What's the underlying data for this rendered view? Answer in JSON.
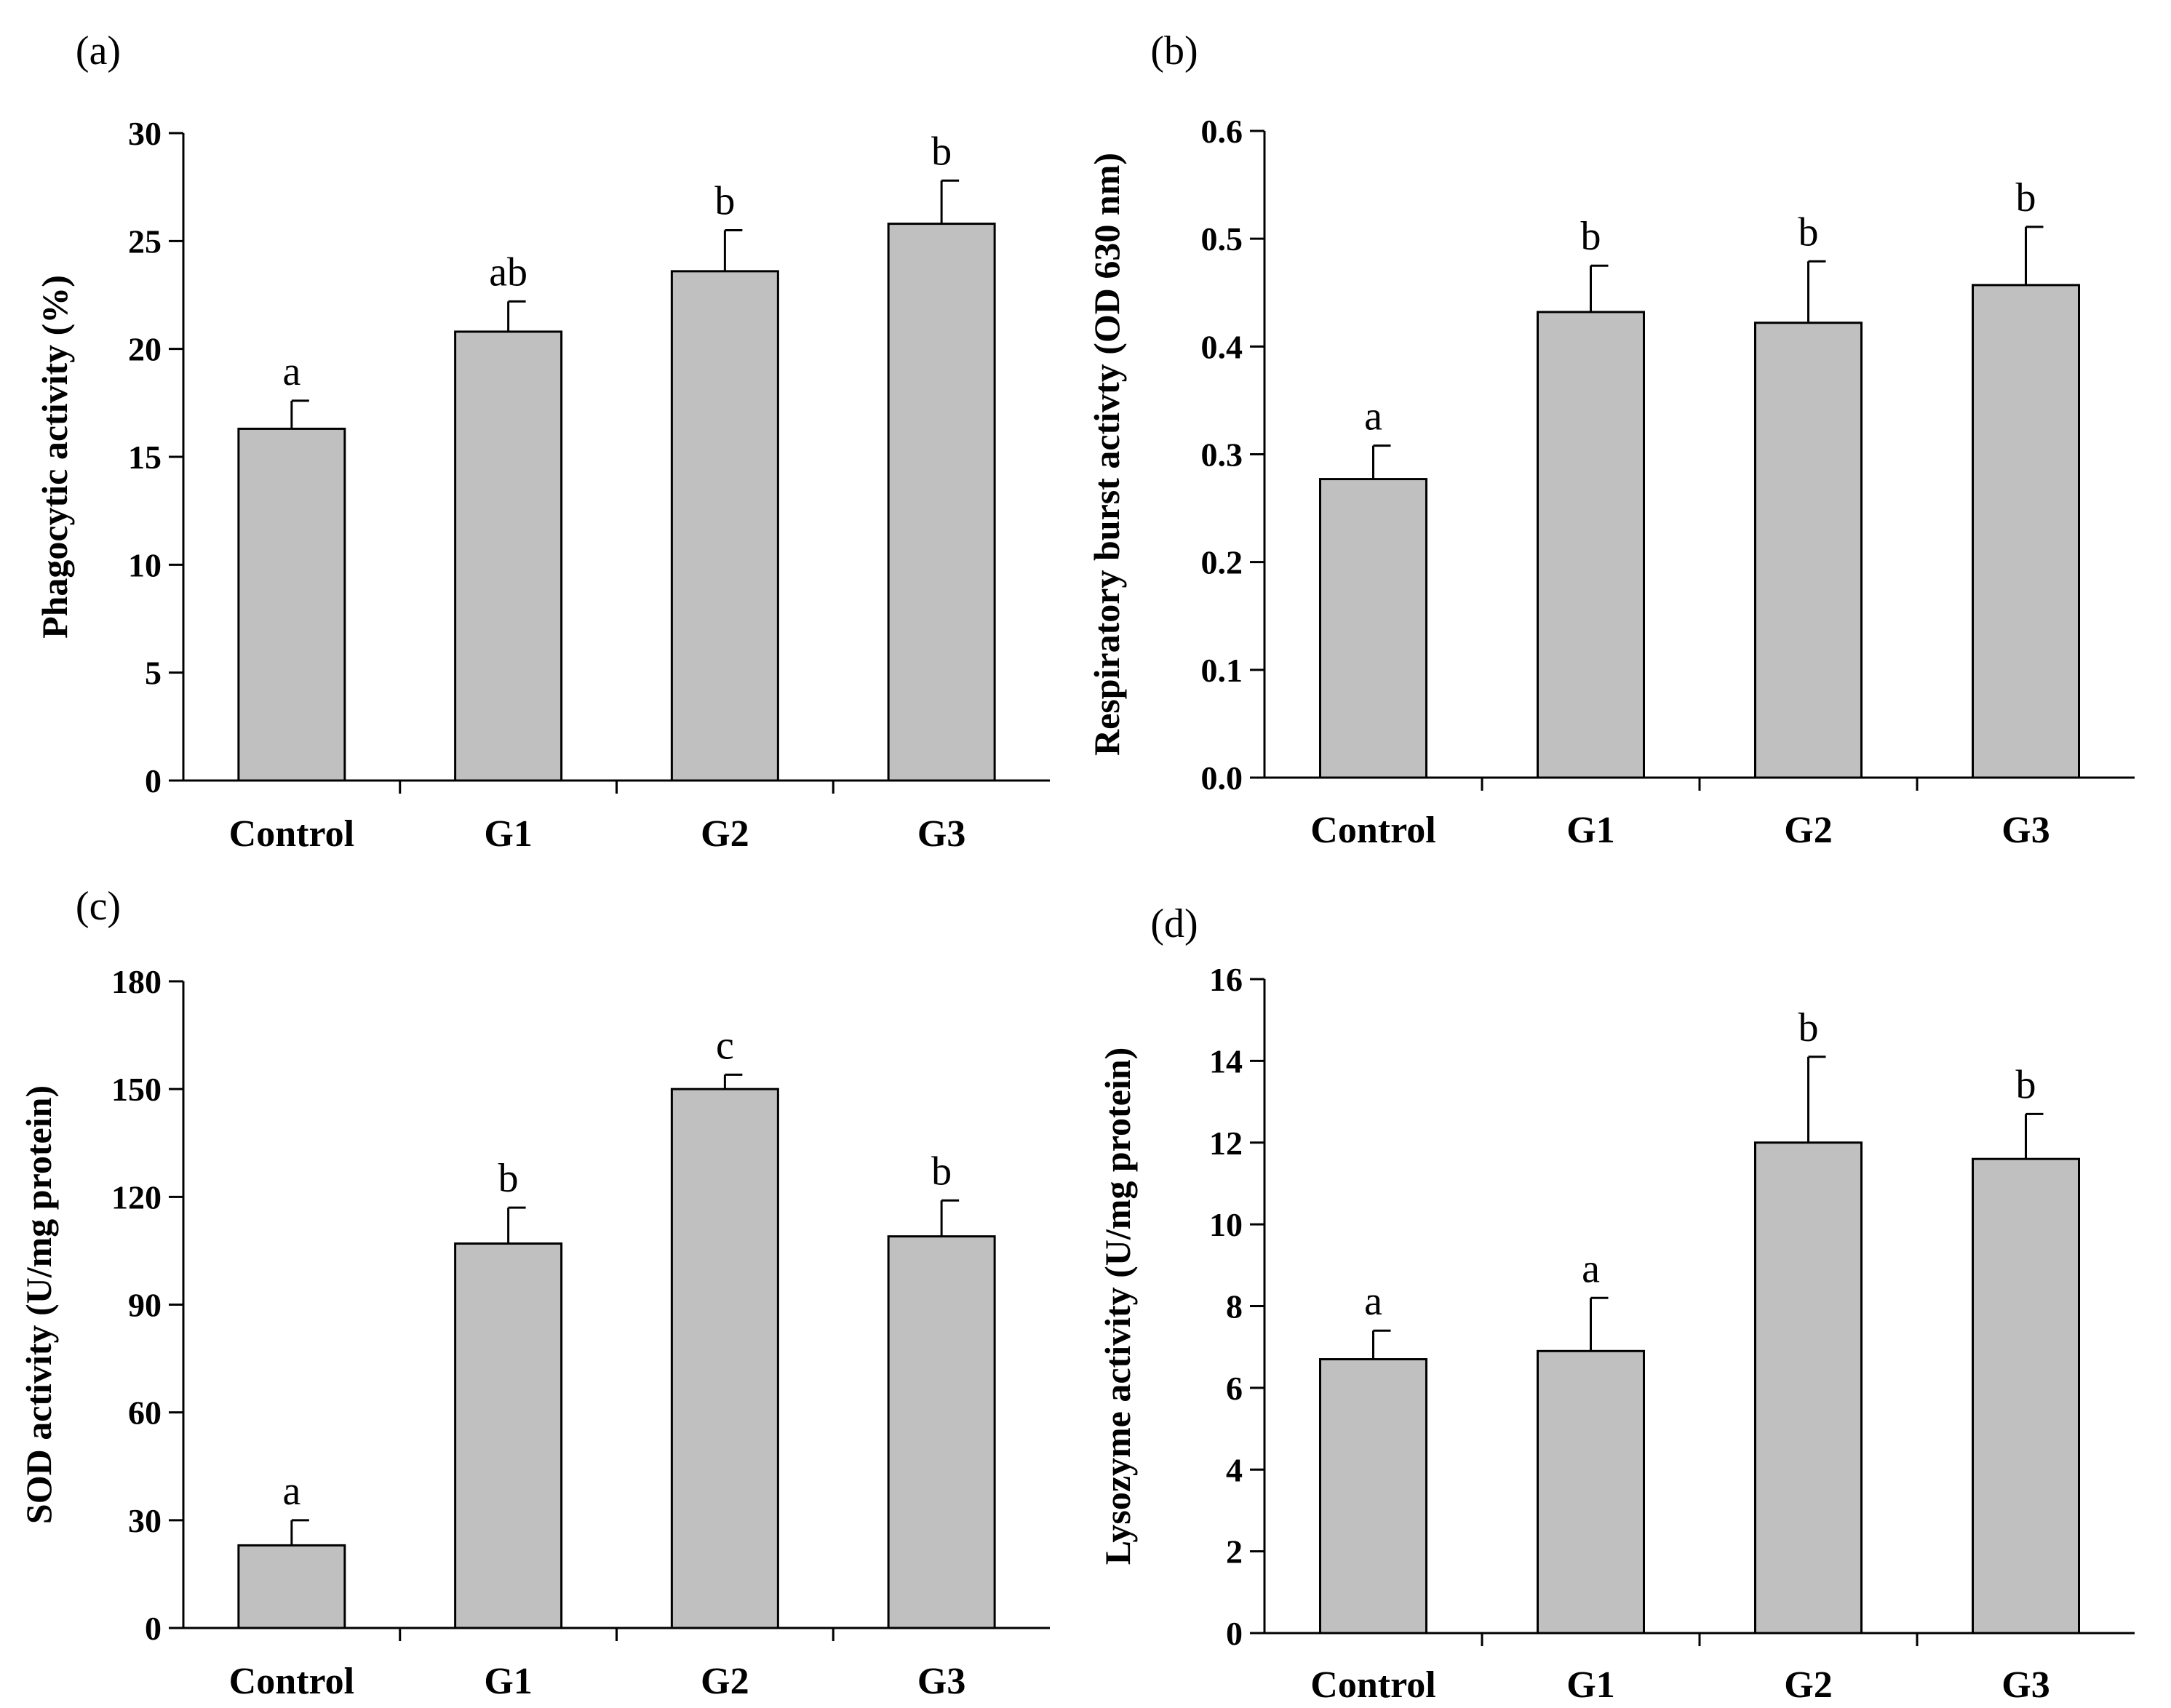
{
  "colors": {
    "bar_fill": "#c0c0c0",
    "bar_stroke": "#000000",
    "axis": "#000000"
  },
  "chart_data": [
    {
      "type": "bar",
      "panel": "(a)",
      "categories": [
        "Control",
        "G1",
        "G2",
        "G3"
      ],
      "values": [
        16.3,
        20.8,
        23.6,
        25.8
      ],
      "errors": [
        1.3,
        1.4,
        1.9,
        2.0
      ],
      "significance": [
        "a",
        "ab",
        "b",
        "b"
      ],
      "title": "",
      "xlabel": "",
      "ylabel": "Phagocytic activity (%)",
      "ylim": [
        0,
        30
      ],
      "yticks": [
        "0",
        "5",
        "10",
        "15",
        "20",
        "25",
        "30"
      ]
    },
    {
      "type": "bar",
      "panel": "(b)",
      "categories": [
        "Control",
        "G1",
        "G2",
        "G3"
      ],
      "values": [
        0.277,
        0.432,
        0.422,
        0.457
      ],
      "errors": [
        0.031,
        0.043,
        0.057,
        0.054
      ],
      "significance": [
        "a",
        "b",
        "b",
        "b"
      ],
      "title": "",
      "xlabel": "",
      "ylabel": "Respiratory burst activty (OD 630 nm)",
      "ylim": [
        0,
        0.6
      ],
      "yticks": [
        "0.0",
        "0.1",
        "0.2",
        "0.3",
        "0.4",
        "0.5",
        "0.6"
      ]
    },
    {
      "type": "bar",
      "panel": "(c)",
      "categories": [
        "Control",
        "G1",
        "G2",
        "G3"
      ],
      "values": [
        23,
        107,
        150,
        109
      ],
      "errors": [
        7,
        10,
        4,
        10
      ],
      "significance": [
        "a",
        "b",
        "c",
        "b"
      ],
      "title": "",
      "xlabel": "",
      "ylabel": "SOD activity (U/mg protein)",
      "ylim": [
        0,
        180
      ],
      "yticks": [
        "0",
        "30",
        "60",
        "90",
        "120",
        "150",
        "180"
      ]
    },
    {
      "type": "bar",
      "panel": "(d)",
      "categories": [
        "Control",
        "G1",
        "G2",
        "G3"
      ],
      "values": [
        6.7,
        6.9,
        12.0,
        11.6
      ],
      "errors": [
        0.7,
        1.3,
        2.1,
        1.1
      ],
      "significance": [
        "a",
        "a",
        "b",
        "b"
      ],
      "title": "",
      "xlabel": "",
      "ylabel": "Lysozyme activity (U/mg protein)",
      "ylim": [
        0,
        16
      ],
      "yticks": [
        "0",
        "2",
        "4",
        "6",
        "8",
        "10",
        "12",
        "14",
        "16"
      ]
    }
  ]
}
